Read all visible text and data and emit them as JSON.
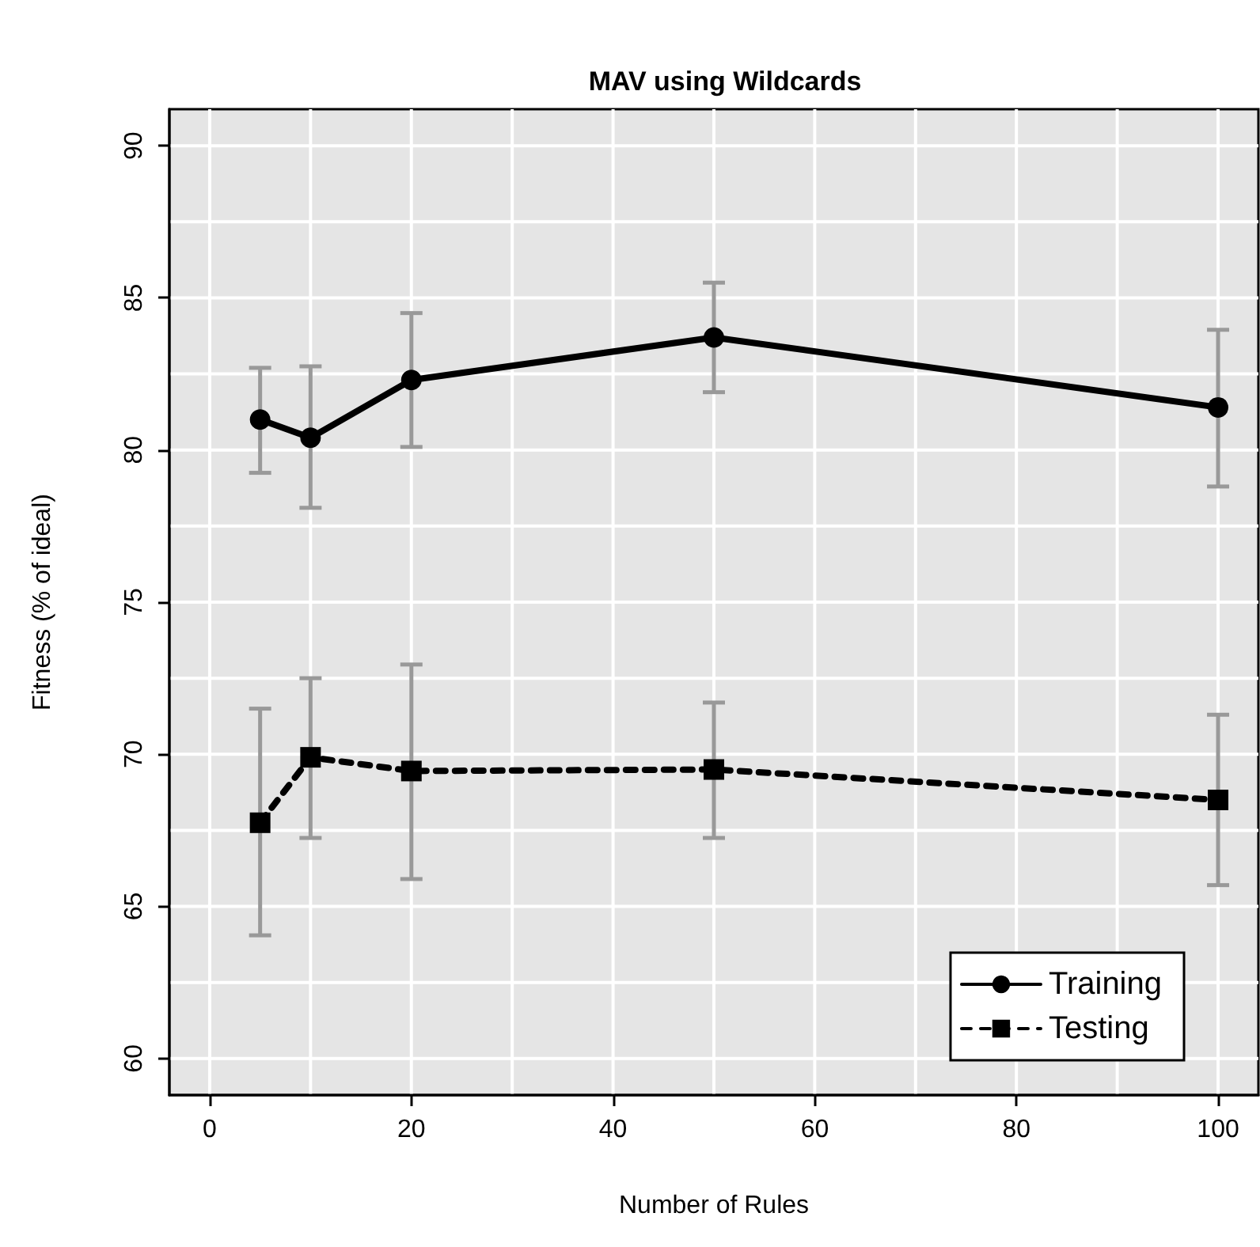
{
  "chart_data": {
    "type": "line",
    "title": "MAV using Wildcards",
    "xlabel": "Number of Rules",
    "ylabel": "Fitness (% of ideal)",
    "x": [
      5,
      10,
      20,
      50,
      100
    ],
    "series": [
      {
        "name": "Training",
        "color": "#000000",
        "marker": "circle",
        "line_style": "solid",
        "values": [
          81.0,
          80.4,
          82.3,
          83.7,
          81.4
        ],
        "errors": [
          [
            79.25,
            82.7
          ],
          [
            78.1,
            82.75
          ],
          [
            80.1,
            84.5
          ],
          [
            81.9,
            85.5
          ],
          [
            78.8,
            83.95
          ]
        ]
      },
      {
        "name": "Testing",
        "color": "#000000",
        "marker": "square",
        "line_style": "dashed",
        "values": [
          67.75,
          69.9,
          69.45,
          69.5,
          68.5
        ],
        "errors": [
          [
            64.05,
            71.5
          ],
          [
            67.25,
            72.5
          ],
          [
            65.9,
            72.95
          ],
          [
            67.25,
            71.7
          ],
          [
            65.7,
            71.3
          ]
        ]
      }
    ],
    "xlim": [
      -4,
      104
    ],
    "xticks": [
      0,
      20,
      40,
      60,
      80,
      100
    ],
    "ylim": [
      58.8,
      91.2
    ],
    "yticks": [
      60,
      65,
      70,
      75,
      80,
      85,
      90
    ],
    "grid": true,
    "legend": "bottom right"
  }
}
